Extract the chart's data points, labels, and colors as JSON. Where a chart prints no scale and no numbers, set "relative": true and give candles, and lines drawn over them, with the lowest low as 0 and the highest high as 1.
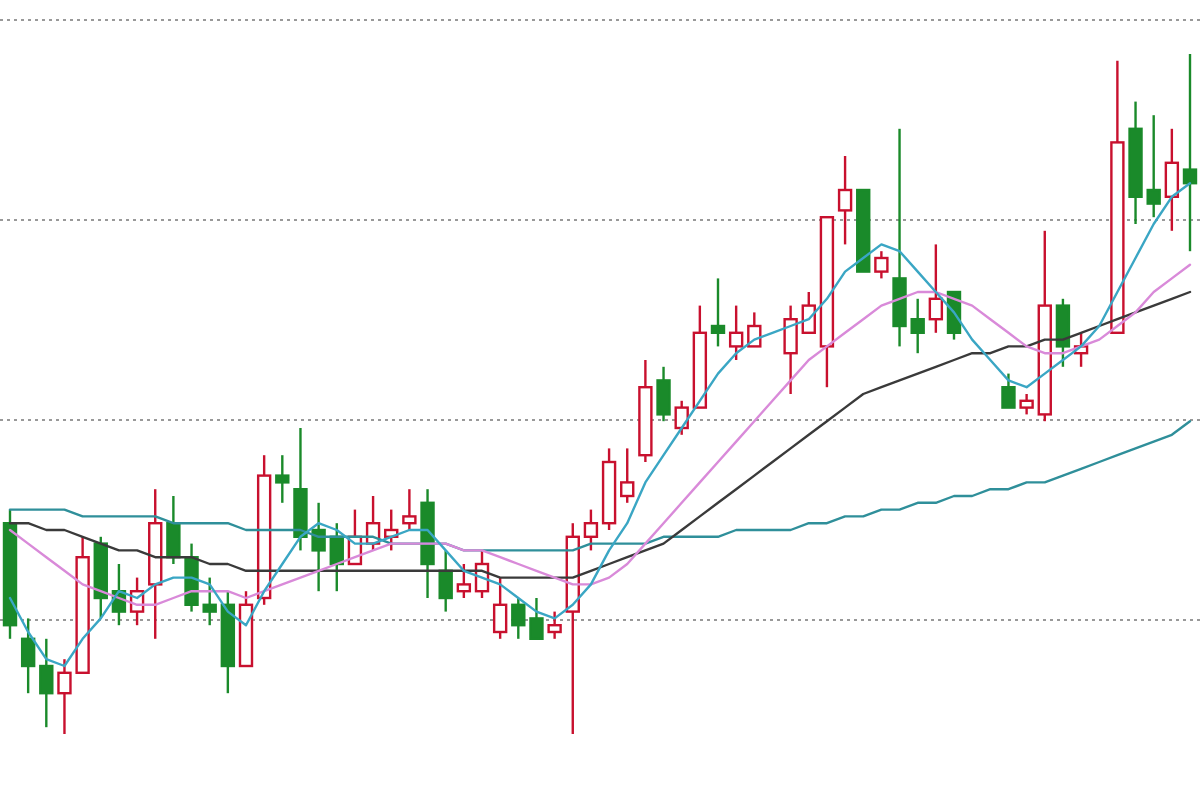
{
  "chart_data": {
    "type": "candlestick",
    "relative": true,
    "grid": "y",
    "categories": [
      null,
      null,
      null,
      null,
      null,
      null,
      null,
      null,
      null,
      null,
      null,
      null,
      null,
      null,
      null,
      null,
      null,
      null,
      null,
      null,
      null,
      null,
      null,
      null,
      null,
      null,
      null,
      null,
      null,
      null,
      null,
      null,
      null,
      null,
      null,
      null,
      null,
      null,
      null,
      null,
      null,
      null,
      null,
      null,
      null,
      null,
      null,
      null,
      null,
      null,
      null,
      null,
      null,
      null,
      null,
      null,
      null,
      null,
      null,
      null,
      null,
      null,
      null,
      null,
      null,
      null
    ],
    "ohlc": [
      [
        0.31,
        0.33,
        0.14,
        0.16
      ],
      [
        0.14,
        0.17,
        0.06,
        0.1
      ],
      [
        0.1,
        0.14,
        0.01,
        0.06
      ],
      [
        0.06,
        0.11,
        0.0,
        0.09
      ],
      [
        0.09,
        0.29,
        0.09,
        0.26
      ],
      [
        0.28,
        0.29,
        0.17,
        0.2
      ],
      [
        0.21,
        0.25,
        0.16,
        0.18
      ],
      [
        0.18,
        0.23,
        0.16,
        0.21
      ],
      [
        0.22,
        0.36,
        0.14,
        0.31
      ],
      [
        0.31,
        0.35,
        0.25,
        0.26
      ],
      [
        0.26,
        0.28,
        0.18,
        0.19
      ],
      [
        0.19,
        0.23,
        0.16,
        0.18
      ],
      [
        0.19,
        0.21,
        0.06,
        0.1
      ],
      [
        0.1,
        0.21,
        0.1,
        0.19
      ],
      [
        0.2,
        0.41,
        0.19,
        0.38
      ],
      [
        0.38,
        0.41,
        0.34,
        0.37
      ],
      [
        0.36,
        0.45,
        0.27,
        0.29
      ],
      [
        0.3,
        0.34,
        0.21,
        0.27
      ],
      [
        0.29,
        0.31,
        0.21,
        0.25
      ],
      [
        0.25,
        0.33,
        0.25,
        0.29
      ],
      [
        0.28,
        0.35,
        0.27,
        0.31
      ],
      [
        0.29,
        0.33,
        0.27,
        0.3
      ],
      [
        0.31,
        0.36,
        0.3,
        0.32
      ],
      [
        0.34,
        0.36,
        0.2,
        0.25
      ],
      [
        0.24,
        0.27,
        0.18,
        0.2
      ],
      [
        0.21,
        0.25,
        0.2,
        0.22
      ],
      [
        0.21,
        0.27,
        0.2,
        0.25
      ],
      [
        0.15,
        0.23,
        0.14,
        0.19
      ],
      [
        0.19,
        0.2,
        0.14,
        0.16
      ],
      [
        0.17,
        0.2,
        0.14,
        0.14
      ],
      [
        0.15,
        0.18,
        0.14,
        0.16
      ],
      [
        0.18,
        0.31,
        0.0,
        0.29
      ],
      [
        0.29,
        0.33,
        0.27,
        0.31
      ],
      [
        0.31,
        0.42,
        0.3,
        0.4
      ],
      [
        0.35,
        0.42,
        0.34,
        0.37
      ],
      [
        0.41,
        0.55,
        0.4,
        0.51
      ],
      [
        0.52,
        0.54,
        0.46,
        0.47
      ],
      [
        0.45,
        0.49,
        0.44,
        0.48
      ],
      [
        0.48,
        0.63,
        0.48,
        0.59
      ],
      [
        0.6,
        0.67,
        0.57,
        0.59
      ],
      [
        0.57,
        0.63,
        0.55,
        0.59
      ],
      [
        0.57,
        0.62,
        0.57,
        0.6
      ],
      null,
      [
        0.56,
        0.63,
        0.5,
        0.61
      ],
      [
        0.59,
        0.65,
        0.59,
        0.63
      ],
      [
        0.57,
        0.76,
        0.51,
        0.76
      ],
      [
        0.77,
        0.85,
        0.72,
        0.8
      ],
      [
        0.8,
        0.8,
        0.68,
        0.68
      ],
      [
        0.68,
        0.71,
        0.67,
        0.7
      ],
      [
        0.67,
        0.89,
        0.57,
        0.6
      ],
      [
        0.61,
        0.64,
        0.56,
        0.59
      ],
      [
        0.61,
        0.72,
        0.59,
        0.64
      ],
      [
        0.65,
        0.65,
        0.58,
        0.59
      ],
      null,
      null,
      [
        0.51,
        0.53,
        0.48,
        0.48
      ],
      [
        0.48,
        0.5,
        0.47,
        0.49
      ],
      [
        0.47,
        0.74,
        0.46,
        0.63
      ],
      [
        0.63,
        0.64,
        0.54,
        0.57
      ],
      [
        0.56,
        0.59,
        0.54,
        0.57
      ],
      null,
      [
        0.59,
        0.99,
        0.59,
        0.87
      ],
      [
        0.89,
        0.93,
        0.75,
        0.79
      ],
      [
        0.8,
        0.91,
        0.76,
        0.78
      ],
      [
        0.79,
        0.89,
        0.74,
        0.84
      ],
      [
        0.83,
        1.0,
        0.71,
        0.81
      ]
    ],
    "series": [
      {
        "type": "line",
        "color": "#2f8f9a",
        "values": [
          0.33,
          0.33,
          0.33,
          0.33,
          0.32,
          0.32,
          0.32,
          0.32,
          0.32,
          0.31,
          0.31,
          0.31,
          0.31,
          0.3,
          0.3,
          0.3,
          0.3,
          0.29,
          0.29,
          0.29,
          0.29,
          0.28,
          0.28,
          0.28,
          0.28,
          0.27,
          0.27,
          0.27,
          0.27,
          0.27,
          0.27,
          0.27,
          0.28,
          0.28,
          0.28,
          0.28,
          0.29,
          0.29,
          0.29,
          0.29,
          0.3,
          0.3,
          0.3,
          0.3,
          0.31,
          0.31,
          0.32,
          0.32,
          0.33,
          0.33,
          0.34,
          0.34,
          0.35,
          0.35,
          0.36,
          0.36,
          0.37,
          0.37,
          0.38,
          0.39,
          0.4,
          0.41,
          0.42,
          0.43,
          0.44,
          0.46
        ]
      },
      {
        "type": "line",
        "color": "#3a3a3a",
        "values": [
          0.31,
          0.31,
          0.3,
          0.3,
          0.29,
          0.28,
          0.27,
          0.27,
          0.26,
          0.26,
          0.26,
          0.25,
          0.25,
          0.24,
          0.24,
          0.24,
          0.24,
          0.24,
          0.24,
          0.24,
          0.24,
          0.24,
          0.24,
          0.24,
          0.24,
          0.24,
          0.24,
          0.23,
          0.23,
          0.23,
          0.23,
          0.23,
          0.24,
          0.25,
          0.26,
          0.27,
          0.28,
          0.3,
          0.32,
          0.34,
          0.36,
          0.38,
          0.4,
          0.42,
          0.44,
          0.46,
          0.48,
          0.5,
          0.51,
          0.52,
          0.53,
          0.54,
          0.55,
          0.56,
          0.56,
          0.57,
          0.57,
          0.58,
          0.58,
          0.59,
          0.6,
          0.61,
          0.62,
          0.63,
          0.64,
          0.65
        ]
      },
      {
        "type": "line",
        "color": "#d98ad9",
        "values": [
          0.3,
          0.28,
          0.26,
          0.24,
          0.22,
          0.21,
          0.2,
          0.19,
          0.19,
          0.2,
          0.21,
          0.21,
          0.21,
          0.2,
          0.21,
          0.22,
          0.23,
          0.24,
          0.25,
          0.26,
          0.27,
          0.28,
          0.28,
          0.28,
          0.28,
          0.27,
          0.27,
          0.26,
          0.25,
          0.24,
          0.23,
          0.22,
          0.22,
          0.23,
          0.25,
          0.28,
          0.31,
          0.34,
          0.37,
          0.4,
          0.43,
          0.46,
          0.49,
          0.52,
          0.55,
          0.57,
          0.59,
          0.61,
          0.63,
          0.64,
          0.65,
          0.65,
          0.64,
          0.63,
          0.61,
          0.59,
          0.57,
          0.56,
          0.56,
          0.57,
          0.58,
          0.6,
          0.62,
          0.65,
          0.67,
          0.69
        ]
      },
      {
        "type": "line",
        "color": "#3aa6c4",
        "values": [
          0.2,
          0.15,
          0.11,
          0.1,
          0.14,
          0.17,
          0.21,
          0.2,
          0.22,
          0.23,
          0.23,
          0.22,
          0.18,
          0.16,
          0.21,
          0.25,
          0.29,
          0.31,
          0.3,
          0.28,
          0.28,
          0.29,
          0.3,
          0.3,
          0.27,
          0.24,
          0.23,
          0.22,
          0.2,
          0.18,
          0.17,
          0.19,
          0.22,
          0.27,
          0.31,
          0.37,
          0.41,
          0.45,
          0.49,
          0.53,
          0.56,
          0.58,
          0.59,
          0.6,
          0.61,
          0.64,
          0.68,
          0.7,
          0.72,
          0.71,
          0.68,
          0.65,
          0.62,
          0.58,
          0.55,
          0.52,
          0.51,
          0.53,
          0.55,
          0.57,
          0.6,
          0.65,
          0.7,
          0.75,
          0.79,
          0.81
        ]
      }
    ]
  }
}
